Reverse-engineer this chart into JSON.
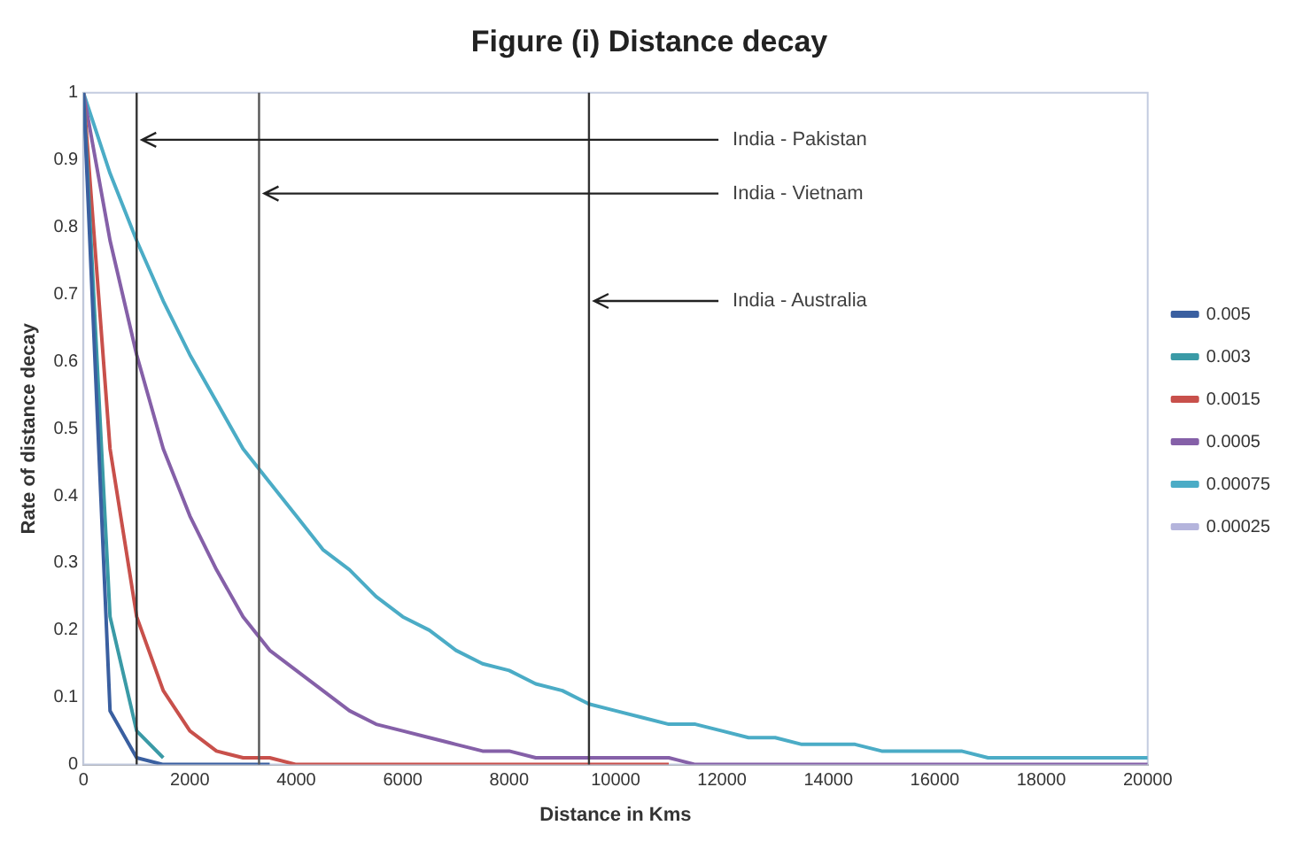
{
  "chart_data": {
    "type": "line",
    "title": "Figure (i) Distance decay",
    "xlabel": "Distance in Kms",
    "ylabel": "Rate of distance decay",
    "x": [
      0,
      500,
      1000,
      1500,
      2000,
      2500,
      3000,
      3500,
      4000,
      4500,
      5000,
      5500,
      6000,
      6500,
      7000,
      7500,
      8000,
      8500,
      9000,
      9500,
      10000,
      10500,
      11000,
      11500,
      12000,
      12500,
      13000,
      13500,
      14000,
      14500,
      15000,
      15500,
      16000,
      16500,
      17000,
      17500,
      18000,
      18500,
      19000,
      19500,
      20000
    ],
    "series": [
      {
        "name": "0.005",
        "color": "#3a5fa0",
        "values": [
          1,
          0.08,
          0.01,
          0,
          0,
          0,
          0,
          0,
          null,
          null,
          null,
          null,
          null,
          null,
          null,
          null,
          null,
          null,
          null,
          null,
          null,
          null,
          null,
          null,
          null,
          null,
          null,
          null,
          null,
          null,
          null,
          null,
          null,
          null,
          null,
          null,
          null,
          null,
          null,
          null,
          null
        ]
      },
      {
        "name": "0.003",
        "color": "#3a9aa6",
        "values": [
          1,
          0.22,
          0.05,
          0.01,
          null,
          null,
          null,
          null,
          null,
          null,
          null,
          null,
          null,
          null,
          null,
          null,
          null,
          null,
          null,
          null,
          null,
          null,
          null,
          null,
          null,
          null,
          null,
          null,
          null,
          null,
          null,
          null,
          null,
          null,
          null,
          null,
          null,
          null,
          null,
          null,
          null
        ]
      },
      {
        "name": "0.0015",
        "color": "#c8504b",
        "values": [
          1,
          0.47,
          0.22,
          0.11,
          0.05,
          0.02,
          0.01,
          0.01,
          0,
          0,
          0,
          0,
          0,
          0,
          0,
          0,
          0,
          0,
          0,
          0,
          0,
          0,
          0,
          null,
          null,
          null,
          null,
          null,
          null,
          null,
          null,
          null,
          null,
          null,
          null,
          null,
          null,
          null,
          null,
          null,
          null
        ]
      },
      {
        "name": "0.0005",
        "color": "#8560a8",
        "values": [
          1,
          0.78,
          0.61,
          0.47,
          0.37,
          0.29,
          0.22,
          0.17,
          0.14,
          0.11,
          0.08,
          0.06,
          0.05,
          0.04,
          0.03,
          0.02,
          0.02,
          0.01,
          0.01,
          0.01,
          0.01,
          0.01,
          0.01,
          0,
          0,
          0,
          0,
          0,
          0,
          0,
          0,
          0,
          0,
          0,
          0,
          0,
          0,
          0,
          0,
          0,
          0
        ]
      },
      {
        "name": "0.00075",
        "color": "#4bacc6",
        "values": [
          1,
          0.88,
          0.78,
          0.69,
          0.61,
          0.54,
          0.47,
          0.42,
          0.37,
          0.32,
          0.29,
          0.25,
          0.22,
          0.2,
          0.17,
          0.15,
          0.14,
          0.12,
          0.11,
          0.09,
          0.08,
          0.07,
          0.06,
          0.06,
          0.05,
          0.04,
          0.04,
          0.03,
          0.03,
          0.03,
          0.02,
          0.02,
          0.02,
          0.02,
          0.01,
          0.01,
          0.01,
          0.01,
          0.01,
          0.01,
          0.01
        ]
      },
      {
        "name": "0.00025",
        "color": "#b4b4dc",
        "values": [
          null,
          null,
          null,
          null,
          null,
          null,
          null,
          null,
          null,
          null,
          null,
          null,
          null,
          null,
          null,
          null,
          null,
          null,
          null,
          null,
          null,
          null,
          null,
          null,
          null,
          null,
          null,
          null,
          null,
          null,
          null,
          null,
          null,
          null,
          null,
          null,
          null,
          null,
          null,
          null,
          null
        ]
      }
    ],
    "xlim": [
      0,
      20000
    ],
    "xticks": [
      0,
      2000,
      4000,
      6000,
      8000,
      10000,
      12000,
      14000,
      16000,
      18000,
      20000
    ],
    "ylim": [
      0,
      1
    ],
    "yticks": [
      0,
      0.1,
      0.2,
      0.3,
      0.4,
      0.5,
      0.6,
      0.7,
      0.8,
      0.9,
      1
    ],
    "ref_lines": [
      {
        "axis": "x",
        "value": 1000,
        "color": "#333333"
      },
      {
        "axis": "x",
        "value": 3300,
        "color": "#555555"
      },
      {
        "axis": "x",
        "value": 9500,
        "color": "#333333"
      }
    ],
    "annotations": [
      {
        "text": "India - Pakistan",
        "x": 1000,
        "y": 0.93
      },
      {
        "text": "India - Vietnam",
        "x": 3300,
        "y": 0.85
      },
      {
        "text": "India - Australia",
        "x": 9500,
        "y": 0.69
      }
    ],
    "grid": false,
    "legend": "right",
    "marker": "none",
    "line_style": "solid"
  }
}
